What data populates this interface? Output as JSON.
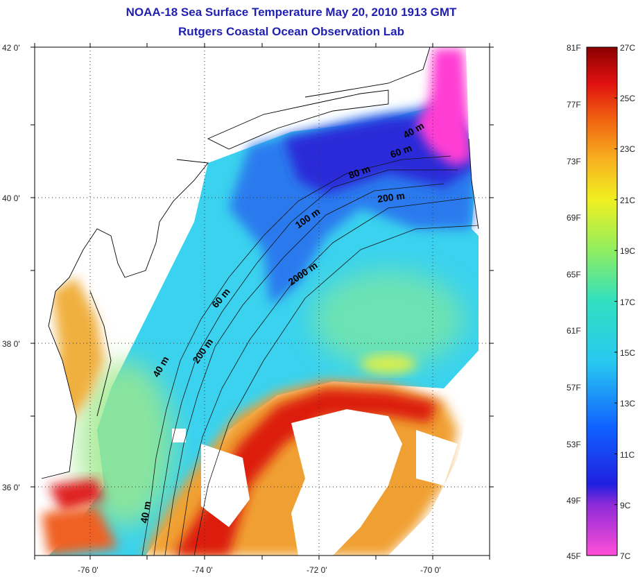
{
  "header": {
    "title": "NOAA-18 Sea Surface Temperature May 20, 2010 1913 GMT",
    "subtitle": "Rutgers Coastal Ocean Observation Lab"
  },
  "map": {
    "lat_ticks": [
      "42 0'",
      "40 0'",
      "38 0'",
      "36 0'"
    ],
    "lon_ticks": [
      "-76 0'",
      "-74 0'",
      "-72 0'",
      "-70 0'"
    ],
    "isobath_labels": [
      "40 m",
      "60 m",
      "80 m",
      "200 m",
      "100 m",
      "2000 m",
      "60 m",
      "40 m",
      "200 m",
      "40 m"
    ],
    "colors": {
      "land": "#ffffff",
      "cold": "#2a2ad8",
      "cool": "#37d0ee",
      "mid": "#7ee894",
      "warm": "#f0a020",
      "hot": "#d81010",
      "coldest": "#ff30d0"
    }
  },
  "colorbar": {
    "fahrenheit_labels": [
      "81F",
      "77F",
      "73F",
      "69F",
      "65F",
      "61F",
      "57F",
      "53F",
      "49F",
      "45F"
    ],
    "celsius_labels": [
      "27C",
      "25C",
      "23C",
      "21C",
      "19C",
      "17C",
      "15C",
      "13C",
      "11C",
      "9C",
      "7C"
    ]
  }
}
